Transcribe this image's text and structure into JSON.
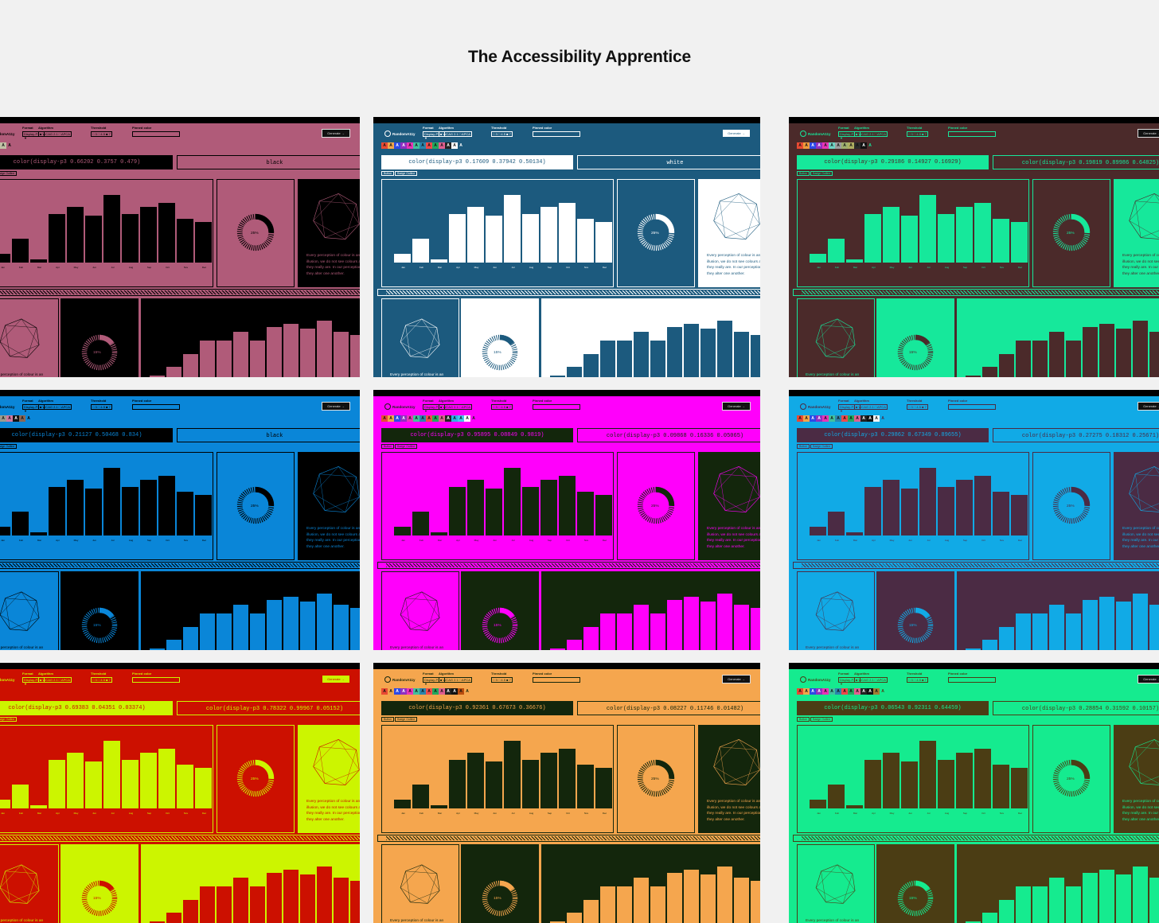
{
  "page_title": "The Accessibility Apprentice",
  "app": {
    "brand": "RandomA11y",
    "labels": {
      "format": "Format",
      "algorithm": "Algorithm",
      "threshold": "Threshold",
      "pinned": "Pinned color",
      "generate": "Generate →"
    },
    "format_value": "Display-P3 ▼",
    "algorithm_options": "■ WCAG 2.1  □ APCA",
    "threshold_options": "□ 3  □ 4.5  ■ 7",
    "months": [
      "Jan",
      "Feb",
      "Mar",
      "Apr",
      "May",
      "Jun",
      "Jul",
      "Aug",
      "Sep",
      "Oct",
      "Nov",
      "Dec"
    ],
    "donut_percent_top": "25%",
    "donut_percent_bottom": "15%",
    "paragraph": "Every perception of colour is an illusion, we do not see colours as they really are. In our perception they alter one another.",
    "paragraph_cut": "Every perception of colour is an",
    "tags": [
      "Button",
      "Badge Outline"
    ],
    "bar_values": [
      6,
      24,
      0,
      52,
      60,
      50,
      74,
      52,
      60,
      65,
      46,
      43
    ],
    "bar_values_bottom": [
      4,
      14,
      30,
      46,
      46,
      56,
      46,
      62,
      66,
      60,
      70,
      56,
      52
    ]
  },
  "tiles": [
    {
      "bg": "#b05b79",
      "fg": "#000000",
      "code1": "color(display-p3 0.66202 0.3757 0.479)",
      "code2": "black",
      "swatches": [
        "#d3342b",
        "#e8e400",
        "#c69a5a",
        "#c1c1a5"
      ]
    },
    {
      "bg": "#1c5a7e",
      "fg": "#ffffff",
      "code1": "color(display-p3 0.17609 0.37942 0.50134)",
      "code2": "white",
      "swatches": [
        "#e84a33",
        "#f1a64a",
        "#2d49e4",
        "#8f2fc1",
        "#e835b6",
        "#42c19e",
        "#2b85ac",
        "#f04a4a",
        "#23a85d",
        "#e05f90",
        "#222222",
        "#ffffff"
      ]
    },
    {
      "bg": "#4b2a2a",
      "fg": "#16e89b",
      "code1": "color(display-p3 0.29186 0.14927 0.16929)",
      "code2": "color(display-p3 0.19819 0.89986 0.64825)",
      "swatches": [
        "#e84a33",
        "#ef9b3c",
        "#2d49e4",
        "#8f2fc1",
        "#e835b6",
        "#6dd2c3",
        "#9d9d9d",
        "#9fae6e",
        "#aeae61",
        "#2b2b2b",
        "#111111"
      ]
    },
    {
      "bg": "#0a86d8",
      "fg": "#000000",
      "code1": "color(display-p3 0.21127 0.50468 0.834)",
      "code2": "black",
      "swatches": [
        "#e4d900",
        "#c38a55",
        "#a2a8a8",
        "#9d9c8f",
        "#d17aa0",
        "#111111",
        "#8b6553"
      ]
    },
    {
      "bg": "#ff00fb",
      "fg": "#13260c",
      "code1": "color(display-p3 0.95895 0.08849 0.9819)",
      "code2": "color(display-p3 0.09868 0.16336 0.05065)",
      "swatches": [
        "#e84a33",
        "#f1a64a",
        "#2d49e4",
        "#8f2fc1",
        "#e835b6",
        "#42c19e",
        "#2b85ac",
        "#f04a4a",
        "#23a85d",
        "#e05f90",
        "#222222",
        "#2bb2e5",
        "#45c7ec",
        "#ffffff"
      ]
    },
    {
      "bg": "#11aae6",
      "fg": "#4b2b44",
      "code1": "color(display-p3 0.29862 0.67349 0.89655)",
      "code2": "color(display-p3 0.27275 0.18312 0.25671)",
      "swatches": [
        "#e84a33",
        "#f1a64a",
        "#2d49e4",
        "#8f2fc1",
        "#e835b6",
        "#42c19e",
        "#2b85ac",
        "#f04a4a",
        "#23a85d",
        "#e05f90",
        "#222222",
        "#111111",
        "#f5f5f5"
      ]
    },
    {
      "bg": "#cc1000",
      "fg": "#ccf500",
      "code1": "color(display-p3 0.69383 0.04351 0.03374)",
      "code2": "color(display-p3 0.78322 0.99967 0.05152)",
      "swatches": []
    },
    {
      "bg": "#f5a64e",
      "fg": "#13260c",
      "code1": "color(display-p3 0.92361 0.67673 0.36676)",
      "code2": "color(display-p3 0.08227 0.11746 0.01482)",
      "swatches": [
        "#e84a33",
        "#f1a64a",
        "#2d49e4",
        "#8f2fc1",
        "#e835b6",
        "#42c19e",
        "#2b85ac",
        "#f04a4a",
        "#23a85d",
        "#e05f90",
        "#222222",
        "#111111",
        "#bb4e0e"
      ]
    },
    {
      "bg": "#15eb8f",
      "fg": "#4b3d14",
      "code1": "color(display-p3 0.06543 0.92311 0.64459)",
      "code2": "color(display-p3 0.28854 0.31592 0.10157)",
      "swatches": [
        "#e84a33",
        "#f1a64a",
        "#2d49e4",
        "#8f2fc1",
        "#e835b6",
        "#42c19e",
        "#2b85ac",
        "#f04a4a",
        "#23a85d",
        "#e05f90",
        "#222222",
        "#111111",
        "#a07d35"
      ]
    }
  ]
}
